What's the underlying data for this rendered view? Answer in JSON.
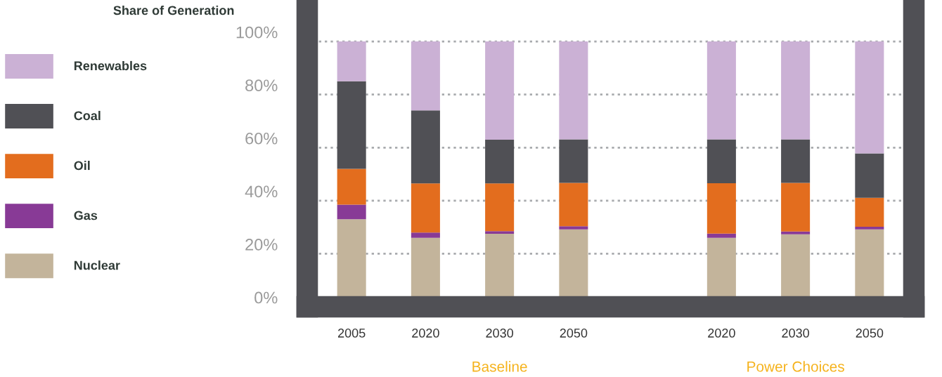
{
  "chart_data": {
    "type": "bar",
    "stacked": true,
    "ylabel": "Share of Generation",
    "categories": [
      "2005",
      "2020",
      "2030",
      "2050",
      null,
      "2020",
      "2030",
      "2050"
    ],
    "series": [
      {
        "name": "Nuclear",
        "color": "#c3b49b",
        "values": [
          33,
          26,
          27.5,
          29.2,
          null,
          26,
          27.3,
          29.2
        ]
      },
      {
        "name": "Gas",
        "color": "#883a96",
        "values": [
          5.5,
          2,
          1,
          1.2,
          null,
          1.6,
          1.1,
          1
        ]
      },
      {
        "name": "Oil",
        "color": "#e36d1e",
        "values": [
          13.5,
          18.5,
          18,
          16.3,
          null,
          19,
          18.3,
          10.9
        ]
      },
      {
        "name": "Coal",
        "color": "#505055",
        "values": [
          33,
          27.5,
          16.5,
          16.4,
          null,
          16.5,
          16.4,
          16.7
        ]
      },
      {
        "name": "Renewables",
        "color": "#cbb1d5",
        "values": [
          15,
          26,
          37,
          36.9,
          null,
          36.9,
          36.9,
          42.2
        ]
      }
    ],
    "ylim": [
      0,
      113
    ],
    "yticks": [
      {
        "value": 0,
        "label": "0%"
      },
      {
        "value": 20,
        "label": "20%"
      },
      {
        "value": 40,
        "label": "40%"
      },
      {
        "value": 60,
        "label": "60%"
      },
      {
        "value": 80,
        "label": "80%"
      },
      {
        "value": 100,
        "label": "100%"
      }
    ],
    "grid": "y",
    "legend": "left",
    "annotations": [
      "Baseline",
      "Power Choices"
    ]
  }
}
